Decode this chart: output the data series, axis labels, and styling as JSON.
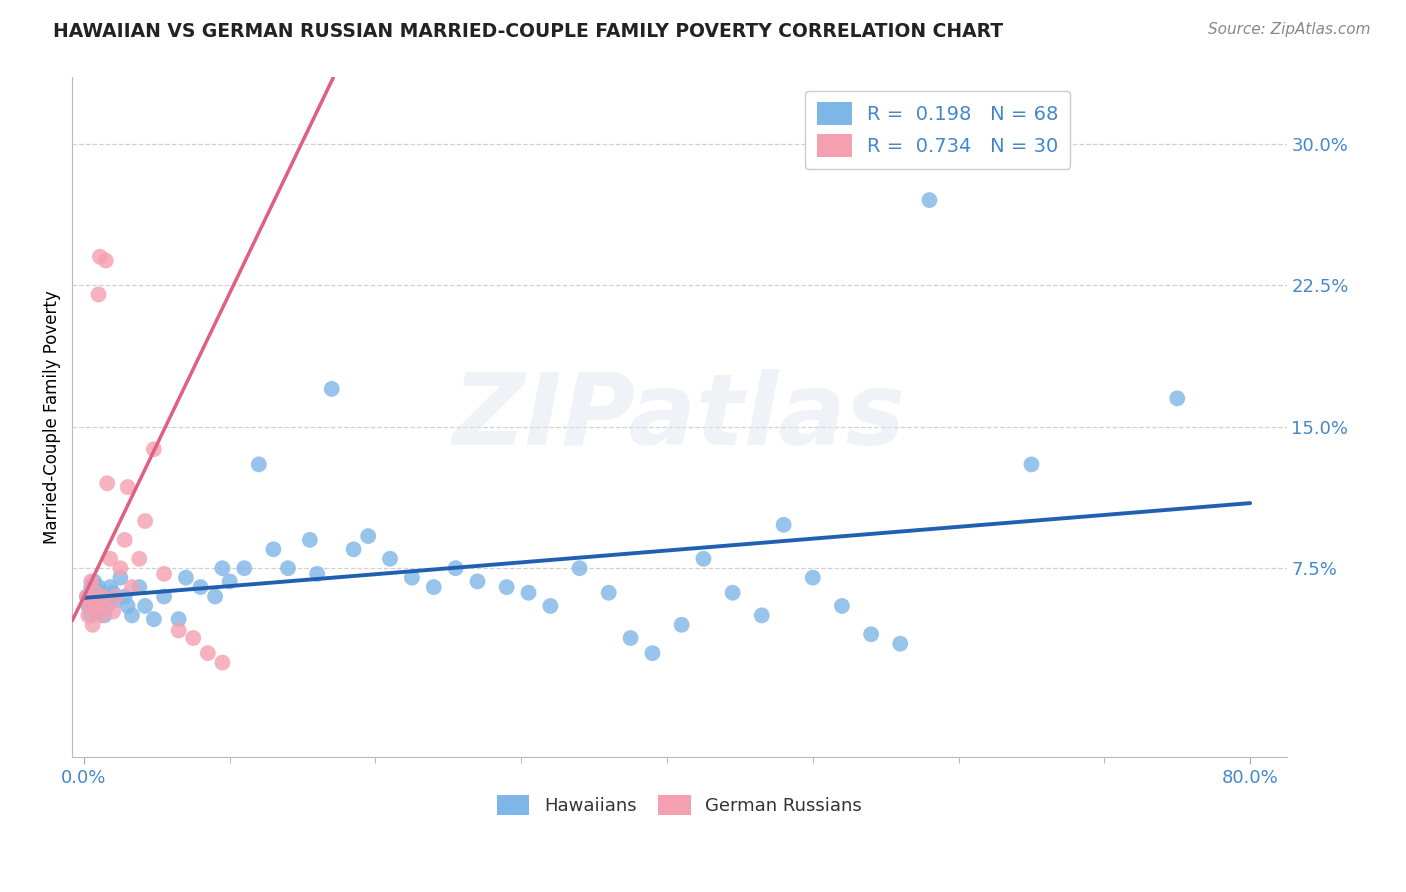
{
  "title": "HAWAIIAN VS GERMAN RUSSIAN MARRIED-COUPLE FAMILY POVERTY CORRELATION CHART",
  "source": "Source: ZipAtlas.com",
  "ylabel": "Married-Couple Family Poverty",
  "xlim": [
    -0.008,
    0.825
  ],
  "ylim": [
    -0.025,
    0.335
  ],
  "ytick_positions": [
    0.075,
    0.15,
    0.225,
    0.3
  ],
  "yticklabels": [
    "7.5%",
    "15.0%",
    "22.5%",
    "30.0%"
  ],
  "xtick_major": [
    0.0,
    0.8
  ],
  "xtick_minor": [
    0.1,
    0.2,
    0.3,
    0.4,
    0.5,
    0.6,
    0.7
  ],
  "xticklabels_major": [
    "0.0%",
    "80.0%"
  ],
  "grid_color": "#cccccc",
  "background_color": "#ffffff",
  "hawaiian_color": "#7EB6E8",
  "german_russian_color": "#F4A0B0",
  "hawaiian_line_color": "#2060B0",
  "german_russian_line_color": "#E06080",
  "R_hawaiian": 0.198,
  "N_hawaiian": 68,
  "R_german_russian": 0.734,
  "N_german_russian": 30,
  "legend_text_color": "#4488CC",
  "watermark": "ZIPatlas",
  "hawaiian_x": [
    0.002,
    0.003,
    0.004,
    0.005,
    0.005,
    0.006,
    0.007,
    0.007,
    0.008,
    0.009,
    0.01,
    0.011,
    0.012,
    0.013,
    0.014,
    0.015,
    0.016,
    0.017,
    0.018,
    0.02,
    0.022,
    0.025,
    0.028,
    0.03,
    0.033,
    0.038,
    0.042,
    0.048,
    0.055,
    0.065,
    0.07,
    0.08,
    0.09,
    0.095,
    0.1,
    0.11,
    0.12,
    0.13,
    0.14,
    0.155,
    0.16,
    0.17,
    0.185,
    0.195,
    0.21,
    0.225,
    0.24,
    0.255,
    0.27,
    0.29,
    0.305,
    0.32,
    0.34,
    0.36,
    0.375,
    0.39,
    0.41,
    0.425,
    0.445,
    0.465,
    0.48,
    0.5,
    0.52,
    0.54,
    0.56,
    0.58,
    0.65,
    0.75
  ],
  "hawaiian_y": [
    0.06,
    0.055,
    0.058,
    0.065,
    0.05,
    0.062,
    0.055,
    0.068,
    0.06,
    0.052,
    0.065,
    0.058,
    0.062,
    0.055,
    0.05,
    0.06,
    0.055,
    0.058,
    0.065,
    0.062,
    0.058,
    0.07,
    0.06,
    0.055,
    0.05,
    0.065,
    0.055,
    0.048,
    0.06,
    0.048,
    0.07,
    0.065,
    0.06,
    0.075,
    0.068,
    0.075,
    0.13,
    0.085,
    0.075,
    0.09,
    0.072,
    0.17,
    0.085,
    0.092,
    0.08,
    0.07,
    0.065,
    0.075,
    0.068,
    0.065,
    0.062,
    0.055,
    0.075,
    0.062,
    0.038,
    0.03,
    0.045,
    0.08,
    0.062,
    0.05,
    0.098,
    0.07,
    0.055,
    0.04,
    0.035,
    0.27,
    0.13,
    0.165
  ],
  "german_russian_x": [
    0.002,
    0.003,
    0.004,
    0.005,
    0.006,
    0.007,
    0.008,
    0.009,
    0.01,
    0.011,
    0.012,
    0.013,
    0.014,
    0.015,
    0.016,
    0.018,
    0.02,
    0.022,
    0.025,
    0.028,
    0.03,
    0.033,
    0.038,
    0.042,
    0.048,
    0.055,
    0.065,
    0.075,
    0.085,
    0.095
  ],
  "german_russian_y": [
    0.06,
    0.05,
    0.055,
    0.068,
    0.045,
    0.058,
    0.062,
    0.055,
    0.22,
    0.24,
    0.05,
    0.06,
    0.055,
    0.238,
    0.12,
    0.08,
    0.052,
    0.06,
    0.075,
    0.09,
    0.118,
    0.065,
    0.08,
    0.1,
    0.138,
    0.072,
    0.042,
    0.038,
    0.03,
    0.025
  ]
}
